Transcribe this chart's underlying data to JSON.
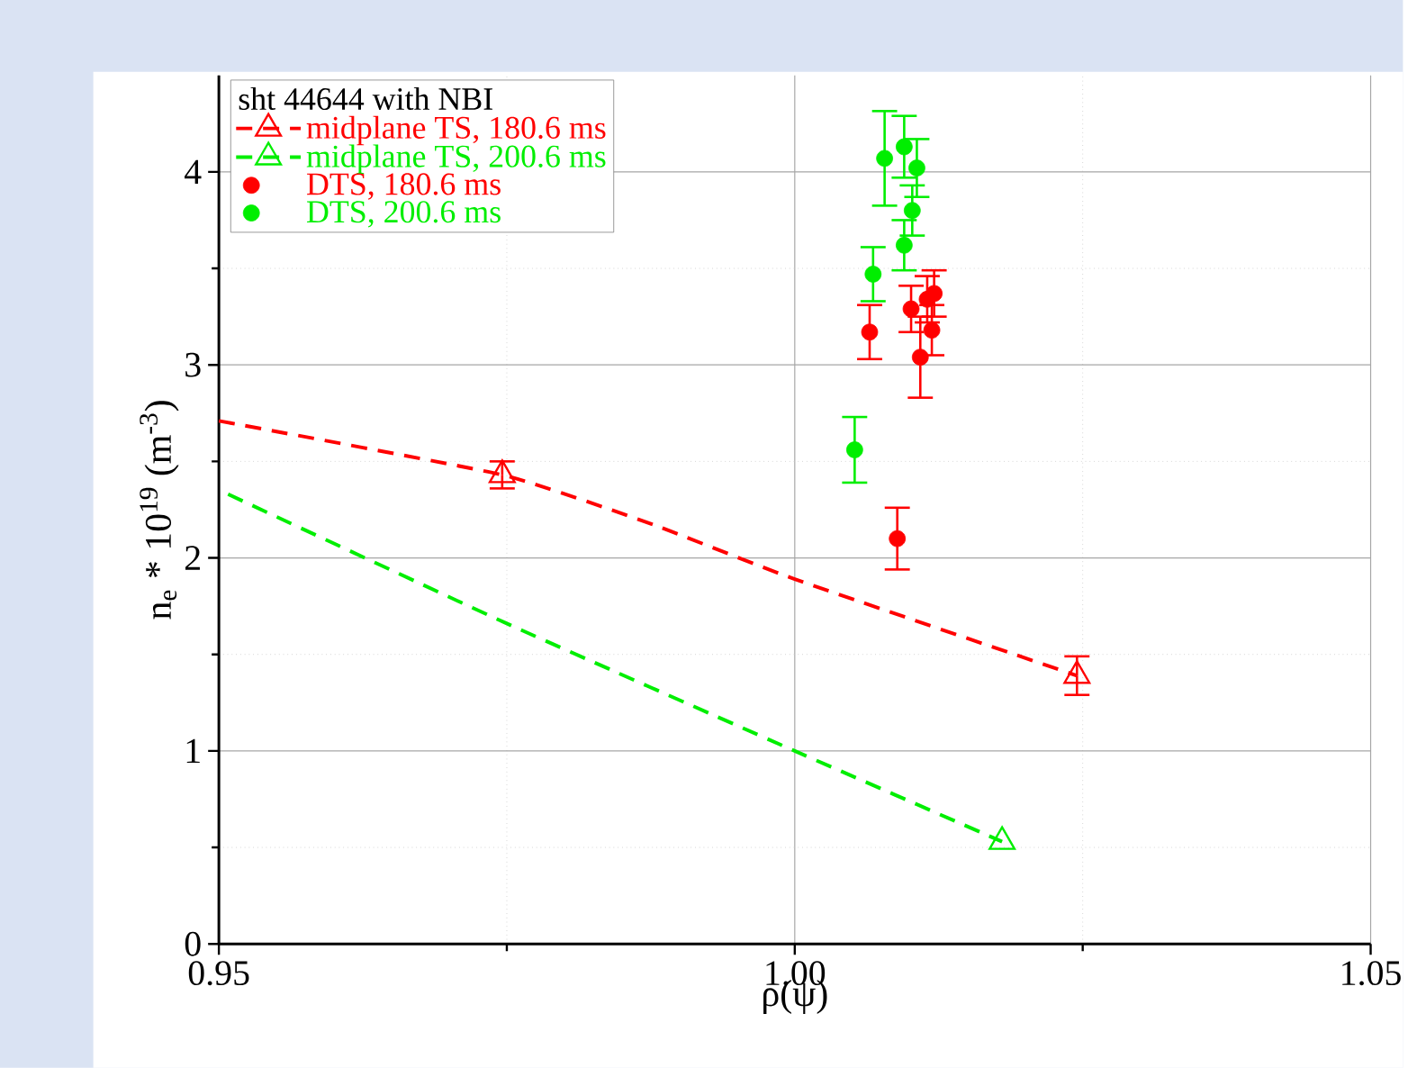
{
  "chart_data": {
    "type": "scatter",
    "xlabel": "ρ(ψ)",
    "ylabel": "n$_{e}$ * 10$^{19}$ (m$^{-3}$)",
    "legend_title": "sht 44644 with NBI",
    "xlim": [
      0.95,
      1.05
    ],
    "ylim": [
      0,
      4.5
    ],
    "xticks": [
      0.95,
      {
        "value": 1.0,
        "label": "1.00"
      },
      1.05
    ],
    "yticks": [
      0,
      1,
      2,
      3,
      4
    ],
    "grid": true,
    "legend": "top left",
    "series": [
      {
        "type": "line",
        "color": "#ff0000",
        "line_style": "dashed",
        "marker": "none",
        "x": [
          0.95,
          0.9746,
          0.9878,
          1.0,
          1.0245
        ],
        "values": [
          2.71,
          2.43,
          2.17,
          1.89,
          1.39
        ]
      },
      {
        "type": "line",
        "color": "#00ee00",
        "line_style": "dashed",
        "marker": "none",
        "x": [
          0.9508,
          0.975,
          1.0,
          1.018
        ],
        "values": [
          2.33,
          1.66,
          1.0,
          0.53
        ]
      },
      {
        "name": "midplane TS, 180.6 ms",
        "color": "#ff0000",
        "marker": "triangle",
        "line_style": "dashed",
        "x": [
          0.9746,
          1.0245
        ],
        "values": [
          2.43,
          1.39
        ],
        "errors": [
          0.07,
          0.1
        ]
      },
      {
        "name": "midplane TS, 200.6 ms",
        "color": "#00ee00",
        "marker": "triangle",
        "line_style": "dashed",
        "x": [
          1.018
        ],
        "values": [
          0.53
        ]
      },
      {
        "name": "DTS, 180.6 ms",
        "color": "#ff0000",
        "marker": "circle",
        "x": [
          1.0065,
          1.0101,
          1.0115,
          1.0121,
          1.0119,
          1.0109,
          1.0089
        ],
        "values": [
          3.17,
          3.29,
          3.34,
          3.37,
          3.18,
          3.04,
          2.1
        ],
        "errors": [
          0.14,
          0.12,
          0.12,
          0.12,
          0.13,
          0.21,
          0.16
        ]
      },
      {
        "name": "DTS, 200.6 ms",
        "color": "#00ee00",
        "marker": "circle",
        "x": [
          1.0078,
          1.0095,
          1.0106,
          1.0102,
          1.0095,
          1.0068,
          1.0052
        ],
        "values": [
          4.07,
          4.13,
          4.02,
          3.8,
          3.62,
          3.47,
          2.56
        ],
        "errors": [
          0.245,
          0.16,
          0.15,
          0.13,
          0.13,
          0.14,
          0.17
        ]
      }
    ]
  }
}
